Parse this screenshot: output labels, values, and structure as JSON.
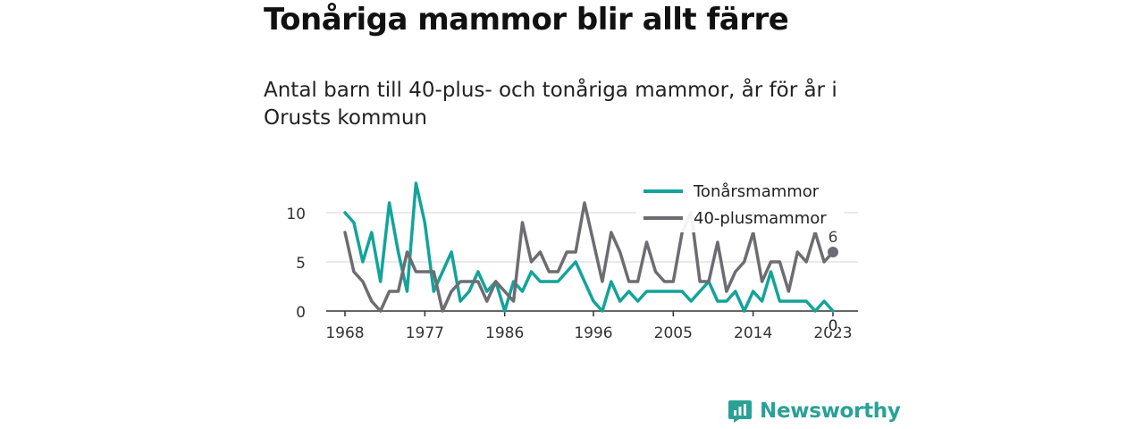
{
  "header": {
    "title": "Tonåriga mammor blir allt färre",
    "subtitle": "Antal barn till 40-plus- och tonåriga mammor, år för år i Orusts kommun"
  },
  "brand": {
    "name": "Newsworthy",
    "color": "#2aa196"
  },
  "chart_data": {
    "type": "line",
    "x": [
      1968,
      1969,
      1970,
      1971,
      1972,
      1973,
      1974,
      1975,
      1976,
      1977,
      1978,
      1979,
      1980,
      1981,
      1982,
      1983,
      1984,
      1985,
      1986,
      1987,
      1988,
      1989,
      1990,
      1991,
      1992,
      1993,
      1994,
      1995,
      1996,
      1997,
      1998,
      1999,
      2000,
      2001,
      2002,
      2003,
      2004,
      2005,
      2006,
      2007,
      2008,
      2009,
      2010,
      2011,
      2012,
      2013,
      2014,
      2015,
      2016,
      2017,
      2018,
      2019,
      2020,
      2021,
      2022,
      2023
    ],
    "series": [
      {
        "name": "Tonårsmammor",
        "color": "#13a39a",
        "values": [
          10,
          9,
          5,
          8,
          3,
          11,
          6,
          2,
          13,
          9,
          2,
          4,
          6,
          1,
          2,
          4,
          2,
          3,
          0,
          3,
          2,
          4,
          3,
          3,
          3,
          4,
          5,
          3,
          1,
          0,
          3,
          1,
          2,
          1,
          2,
          2,
          2,
          2,
          2,
          1,
          2,
          3,
          1,
          1,
          2,
          0,
          2,
          1,
          4,
          1,
          1,
          1,
          1,
          0,
          1,
          0
        ],
        "end_label": "0"
      },
      {
        "name": "40-plusmammor",
        "color": "#6d6c72",
        "values": [
          8,
          4,
          3,
          1,
          0,
          2,
          2,
          6,
          4,
          4,
          4,
          0,
          2,
          3,
          3,
          3,
          1,
          3,
          2,
          1,
          9,
          5,
          6,
          4,
          4,
          6,
          6,
          11,
          7,
          3,
          8,
          6,
          3,
          3,
          7,
          4,
          3,
          3,
          8,
          10,
          3,
          3,
          7,
          2,
          4,
          5,
          8,
          3,
          5,
          5,
          2,
          6,
          5,
          8,
          5,
          6
        ],
        "end_label": "6"
      }
    ],
    "x_ticks": [
      1968,
      1977,
      1986,
      1996,
      2005,
      2014,
      2023
    ],
    "y_ticks": [
      0,
      5,
      10
    ],
    "xlim": [
      1968,
      2023
    ],
    "ylim": [
      0,
      13
    ],
    "legend_position": "top-right",
    "grid": "horizontal"
  }
}
